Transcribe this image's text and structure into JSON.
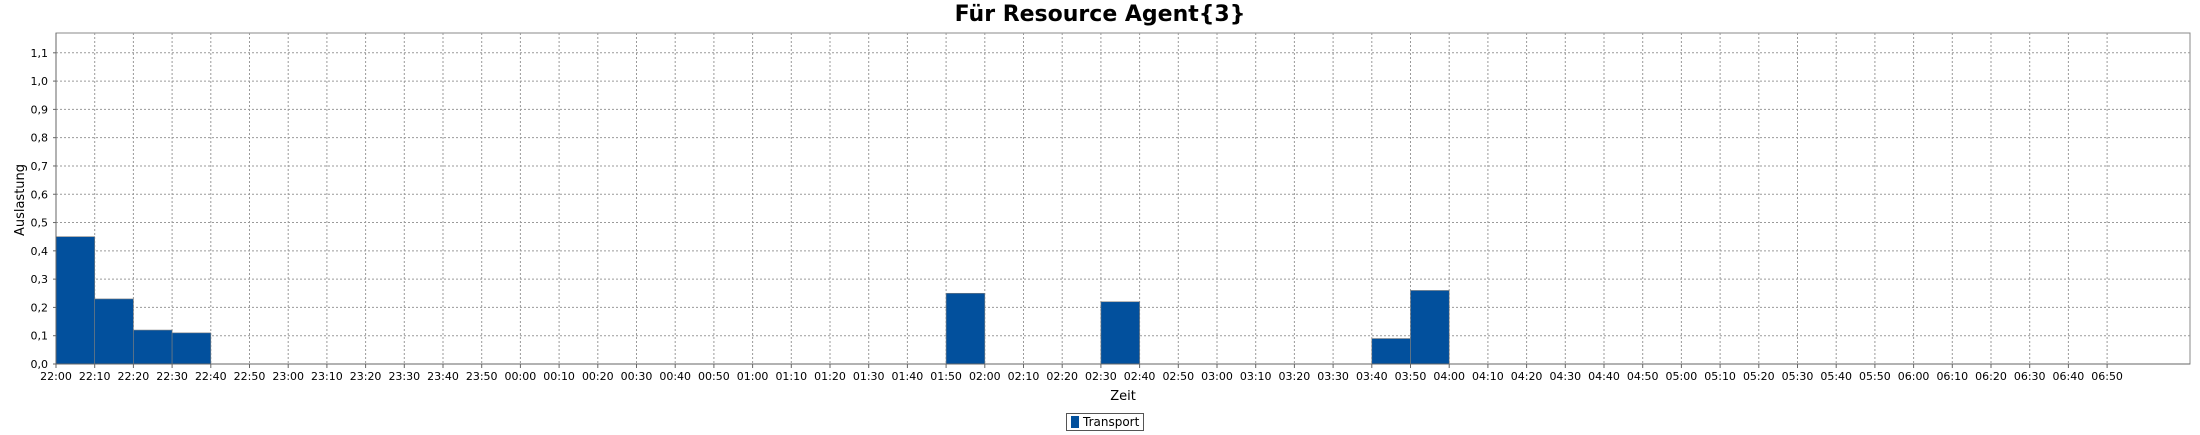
{
  "chart_data": {
    "type": "bar",
    "title": "Für Resource Agent{3}",
    "xlabel": "Zeit",
    "ylabel": "Auslastung",
    "ylim": [
      0,
      1.17
    ],
    "yticks": [
      "0,0",
      "0,1",
      "0,2",
      "0,3",
      "0,4",
      "0,5",
      "0,6",
      "0,7",
      "0,8",
      "0,9",
      "1,0",
      "1,1"
    ],
    "grid": true,
    "legend_placement": "bottom-center",
    "categories": [
      "22:00",
      "22:10",
      "22:20",
      "22:30",
      "22:40",
      "22:50",
      "23:00",
      "23:10",
      "23:20",
      "23:30",
      "23:40",
      "23:50",
      "00:00",
      "00:10",
      "00:20",
      "00:30",
      "00:40",
      "00:50",
      "01:00",
      "01:10",
      "01:20",
      "01:30",
      "01:40",
      "01:50",
      "02:00",
      "02:10",
      "02:20",
      "02:30",
      "02:40",
      "02:50",
      "03:00",
      "03:10",
      "03:20",
      "03:30",
      "03:40",
      "03:50",
      "04:00",
      "04:10",
      "04:20",
      "04:30",
      "04:40",
      "04:50",
      "05:00",
      "05:10",
      "05:20",
      "05:30",
      "05:40",
      "05:50",
      "06:00",
      "06:10",
      "06:20",
      "06:30",
      "06:40",
      "06:50"
    ],
    "series": [
      {
        "name": "Transport",
        "color": "#02509d",
        "values": [
          0.45,
          0.23,
          0.12,
          0.11,
          0,
          0,
          0,
          0,
          0,
          0,
          0,
          0,
          0,
          0,
          0,
          0,
          0,
          0,
          0,
          0,
          0,
          0,
          0,
          0.25,
          0,
          0,
          0,
          0.22,
          0,
          0,
          0,
          0,
          0,
          0,
          0.09,
          0.26,
          0,
          0,
          0,
          0,
          0,
          0,
          0,
          0,
          0,
          0,
          0,
          0,
          0,
          0,
          0,
          0,
          0,
          0
        ]
      }
    ]
  }
}
